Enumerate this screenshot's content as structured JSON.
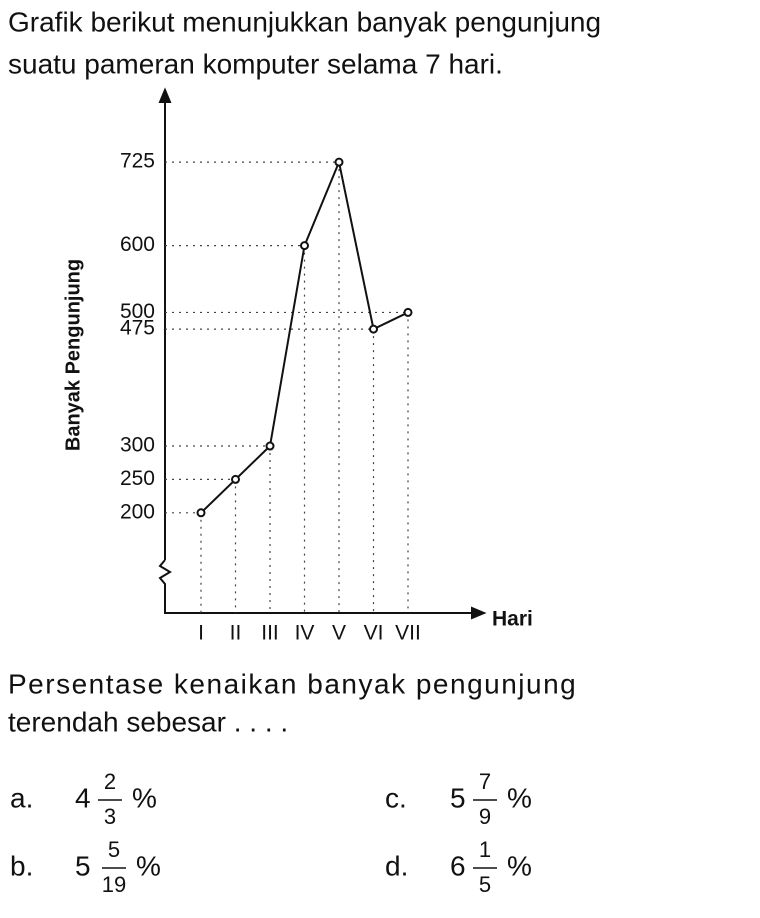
{
  "intro_lines": [
    "Grafik berikut menunjukkan banyak pengunjung",
    "suatu pameran komputer selama 7 hari."
  ],
  "chart_data": {
    "type": "line",
    "y_label": "Banyak Pengunjung",
    "x_label": "Hari",
    "categories": [
      "I",
      "II",
      "III",
      "IV",
      "V",
      "VI",
      "VII"
    ],
    "values": [
      200,
      250,
      300,
      600,
      725,
      475,
      500
    ],
    "color": "#111111",
    "ylim": [
      50,
      830
    ],
    "yticks": [
      200,
      250,
      300,
      475,
      500,
      600,
      725
    ],
    "grid": true
  },
  "question_lines": [
    "Persentase kenaikan banyak pengunjung",
    "terendah sebesar . . . ."
  ],
  "options": [
    {
      "letter": "a.",
      "whole": "4",
      "numerator": "2",
      "denominator": "3",
      "unit": "%"
    },
    {
      "letter": "b.",
      "whole": "5",
      "numerator": "5",
      "denominator": "19",
      "unit": "%"
    },
    {
      "letter": "c.",
      "whole": "5",
      "numerator": "7",
      "denominator": "9",
      "unit": "%"
    },
    {
      "letter": "d.",
      "whole": "6",
      "numerator": "1",
      "denominator": "5",
      "unit": "%"
    }
  ]
}
